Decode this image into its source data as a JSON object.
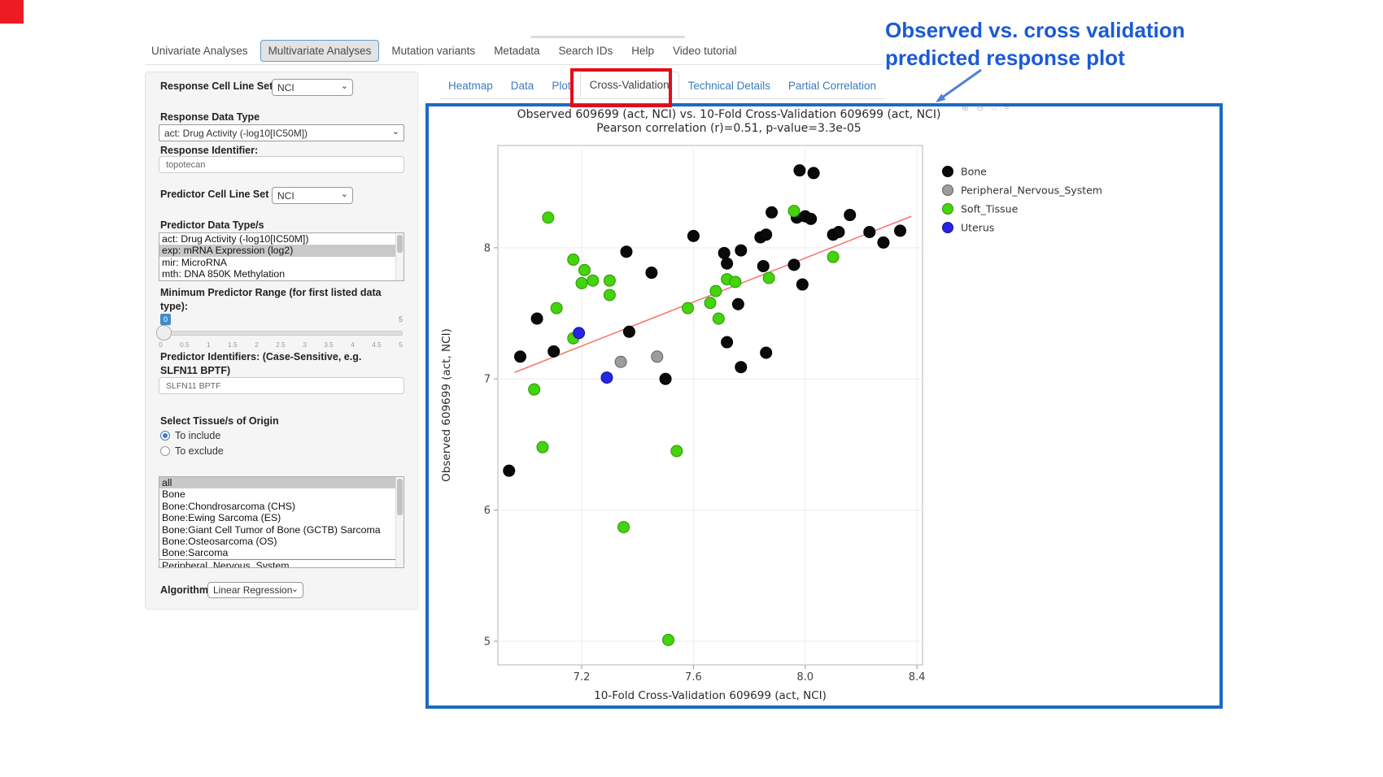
{
  "navbar": {
    "items": [
      "Univariate Analyses",
      "Multivariate Analyses",
      "Mutation variants",
      "Metadata",
      "Search IDs",
      "Help",
      "Video tutorial"
    ],
    "active": "Multivariate Analyses"
  },
  "sidebar": {
    "response_cell_line_set": {
      "label": "Response Cell Line Set",
      "value": "NCI"
    },
    "response_data_type": {
      "label": "Response Data Type",
      "value": "act: Drug Activity (-log10[IC50M])"
    },
    "response_identifier": {
      "label": "Response Identifier:",
      "value": "topotecan"
    },
    "predictor_cell_line_set": {
      "label": "Predictor Cell Line Set",
      "value": "NCI"
    },
    "predictor_data_types": {
      "label": "Predictor Data Type/s",
      "options": [
        "act: Drug Activity (-log10[IC50M])",
        "exp: mRNA Expression (log2)",
        "mir: MicroRNA",
        "mth: DNA 850K Methylation"
      ],
      "selected": "exp: mRNA Expression (log2)"
    },
    "min_predictor_range": {
      "label": "Minimum Predictor Range (for first listed data type):",
      "value": "0",
      "max_label": "5",
      "ticks": [
        "0",
        "0.5",
        "1",
        "1.5",
        "2",
        "2.5",
        "3",
        "3.5",
        "4",
        "4.5",
        "5"
      ]
    },
    "predictor_identifiers": {
      "label": "Predictor Identifiers: (Case-Sensitive, e.g. SLFN11 BPTF)",
      "value": "SLFN11 BPTF"
    },
    "tissue_origin": {
      "label": "Select Tissue/s of Origin",
      "radios": [
        {
          "label": "To include",
          "selected": true
        },
        {
          "label": "To exclude",
          "selected": false
        }
      ],
      "options": [
        "all",
        "Bone",
        "Bone:Chondrosarcoma (CHS)",
        "Bone:Ewing Sarcoma (ES)",
        "Bone:Giant Cell Tumor of Bone (GCTB) Sarcoma",
        "Bone:Osteosarcoma (OS)",
        "Bone:Sarcoma",
        "Peripheral_Nervous_System"
      ],
      "selected": "all"
    },
    "algorithm": {
      "label": "Algorithm",
      "value": "Linear Regression"
    }
  },
  "content_tabs": {
    "items": [
      "Heatmap",
      "Data",
      "Plot",
      "Cross-Validation",
      "Technical Details",
      "Partial Correlation"
    ],
    "active": "Cross-Validation"
  },
  "annotation": {
    "line1": "Observed vs. cross validation",
    "line2": "predicted response plot",
    "text_color": "#1a5bd7",
    "box_border_color": "#1b6ac6",
    "tab_highlight_color": "#e50b18"
  },
  "modebar": {
    "icons": [
      "⊕",
      "⊖",
      "⌂",
      "≡"
    ]
  },
  "chart_data": {
    "type": "scatter",
    "title": "Observed 609699 (act, NCI) vs. 10-Fold Cross-Validation 609699 (act, NCI)",
    "subtitle": "Pearson correlation (r)=0.51, p-value=3.3e-05",
    "xlabel": "10-Fold Cross-Validation 609699 (act, NCI)",
    "ylabel": "Observed 609699 (act, NCI)",
    "xlim": [
      6.9,
      8.42
    ],
    "ylim": [
      4.82,
      8.78
    ],
    "xticks": [
      "7.2",
      "7.6",
      "8.0",
      "8.4"
    ],
    "yticks": [
      "5",
      "6",
      "7",
      "8"
    ],
    "grid": true,
    "legend_position": "right",
    "trend_line": {
      "x": [
        6.96,
        8.38
      ],
      "y": [
        7.05,
        8.24
      ],
      "color": "#f8766d"
    },
    "series": [
      {
        "name": "Bone",
        "color": "#0a0a0a",
        "edge": "#000000",
        "points": [
          [
            6.98,
            7.17
          ],
          [
            7.1,
            7.21
          ],
          [
            7.04,
            7.46
          ],
          [
            6.94,
            6.3
          ],
          [
            7.36,
            7.97
          ],
          [
            7.45,
            7.81
          ],
          [
            7.6,
            8.09
          ],
          [
            7.37,
            7.36
          ],
          [
            7.5,
            7.0
          ],
          [
            7.71,
            7.96
          ],
          [
            7.72,
            7.88
          ],
          [
            7.77,
            7.98
          ],
          [
            7.84,
            8.08
          ],
          [
            7.86,
            8.1
          ],
          [
            7.88,
            8.27
          ],
          [
            7.98,
            8.59
          ],
          [
            8.03,
            8.57
          ],
          [
            7.97,
            8.23
          ],
          [
            8.0,
            8.24
          ],
          [
            8.02,
            8.22
          ],
          [
            7.85,
            7.86
          ],
          [
            7.76,
            7.57
          ],
          [
            7.72,
            7.28
          ],
          [
            7.77,
            7.09
          ],
          [
            7.86,
            7.2
          ],
          [
            7.96,
            7.87
          ],
          [
            7.99,
            7.72
          ],
          [
            8.1,
            8.1
          ],
          [
            8.12,
            8.12
          ],
          [
            8.16,
            8.25
          ],
          [
            8.23,
            8.12
          ],
          [
            8.34,
            8.13
          ],
          [
            8.28,
            8.04
          ]
        ]
      },
      {
        "name": "Peripheral_Nervous_System",
        "color": "#9c9c9c",
        "edge": "#5f5f5f",
        "points": [
          [
            7.34,
            7.13
          ],
          [
            7.47,
            7.17
          ]
        ]
      },
      {
        "name": "Soft_Tissue",
        "color": "#43d40c",
        "edge": "#2f9307",
        "points": [
          [
            7.08,
            8.23
          ],
          [
            7.17,
            7.91
          ],
          [
            7.21,
            7.83
          ],
          [
            7.2,
            7.73
          ],
          [
            7.24,
            7.75
          ],
          [
            7.3,
            7.75
          ],
          [
            7.3,
            7.64
          ],
          [
            7.11,
            7.54
          ],
          [
            7.17,
            7.31
          ],
          [
            7.03,
            6.92
          ],
          [
            7.58,
            7.54
          ],
          [
            7.66,
            7.58
          ],
          [
            7.68,
            7.67
          ],
          [
            7.69,
            7.46
          ],
          [
            7.72,
            7.76
          ],
          [
            7.75,
            7.74
          ],
          [
            7.87,
            7.77
          ],
          [
            7.96,
            8.28
          ],
          [
            8.1,
            7.93
          ],
          [
            7.06,
            6.48
          ],
          [
            7.54,
            6.45
          ],
          [
            7.35,
            5.87
          ],
          [
            7.51,
            5.01
          ]
        ]
      },
      {
        "name": "Uterus",
        "color": "#2626e0",
        "edge": "#13139e",
        "points": [
          [
            7.19,
            7.35
          ],
          [
            7.29,
            7.01
          ]
        ]
      }
    ]
  }
}
